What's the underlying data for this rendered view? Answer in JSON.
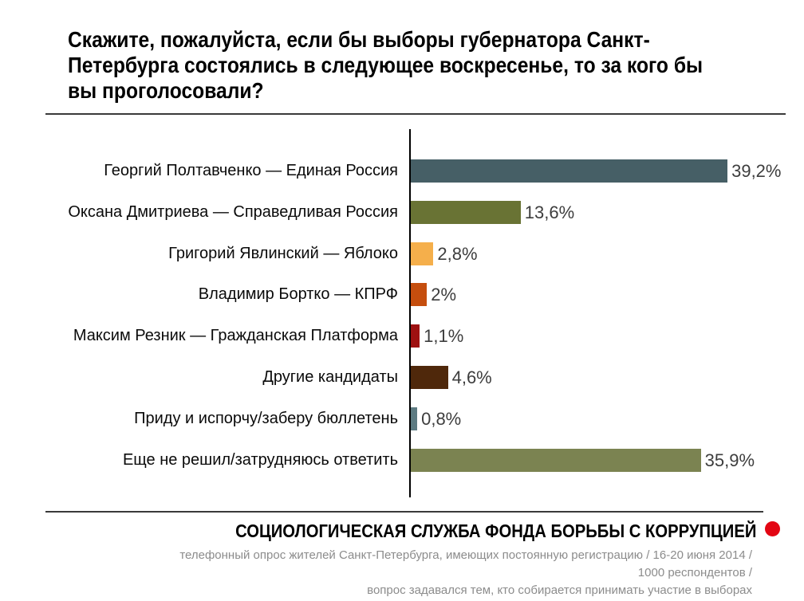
{
  "title": {
    "full": "Скажите, пожалуйста, если бы выборы губернатора Санкт-Петербурга состоялись в следующее воскресенье, то за кого бы вы проголосовали?",
    "lines": [
      "Скажите, пожалуйста, если бы выборы губернатора Санкт-",
      "Петербурга состоялись в следующее воскресенье, то за кого бы",
      "вы проголосовали?"
    ]
  },
  "chart_data": {
    "type": "bar",
    "orientation": "horizontal",
    "categories": [
      "Георгий Полтавченко — Единая Россия",
      "Оксана Дмитриева — Справедливая Россия",
      "Григорий Явлинский — Яблоко",
      "Владимир Бортко — КПРФ",
      "Максим Резник — Гражданская Платформа",
      "Другие кандидаты",
      "Приду и испорчу/заберу бюллетень",
      "Еще не решил/затрудняюсь ответить"
    ],
    "values": [
      39.2,
      13.6,
      2.8,
      2,
      1.1,
      4.6,
      0.8,
      35.9
    ],
    "value_labels": [
      "39,2%",
      "13,6%",
      "2,8%",
      "2%",
      "1,1%",
      "4,6%",
      "0,8%",
      "35,9%"
    ],
    "bar_colors": [
      "#465f66",
      "#697334",
      "#f5af4b",
      "#c54e0e",
      "#9e1111",
      "#4f280b",
      "#5d7b82",
      "#7b8351"
    ],
    "xlim": [
      0,
      48.8
    ],
    "grid": false,
    "legend": false,
    "title": "",
    "xlabel": "",
    "ylabel": ""
  },
  "footer": {
    "org": "СОЦИОЛОГИЧЕСКАЯ СЛУЖБА ФОНДА БОРЬБЫ С КОРРУПЦИЕЙ",
    "dot_color": "#e30613",
    "lines": [
      "телефонный опрос жителей Санкт-Петербурга, имеющих постоянную регистрацию / 16-20 июня 2014 /",
      "1000 респондентов /",
      "вопрос задавался тем, кто собирается принимать участие в выборах"
    ]
  }
}
